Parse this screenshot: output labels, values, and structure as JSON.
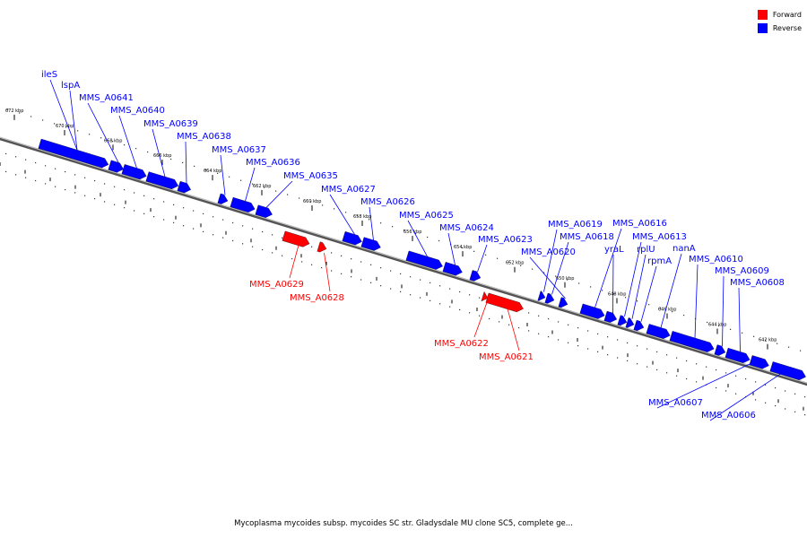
{
  "caption": "Mycoplasma mycoides subsp. mycoides SC str. Gladysdale MU clone SC5, complete ge...",
  "legend": [
    {
      "label": "Forward",
      "color": "#ff0000"
    },
    {
      "label": "Reverse",
      "color": "#0000ff"
    }
  ],
  "colors": {
    "forward": "#ff0000",
    "reverse": "#0000ff",
    "backbone": "#555555"
  },
  "ticks": [
    "672 kbp",
    "670 kbp",
    "668 kbp",
    "666 kbp",
    "664 kbp",
    "662 kbp",
    "660 kbp",
    "658 kbp",
    "656 kbp",
    "654 kbp",
    "652 kbp",
    "650 kbp",
    "648 kbp",
    "646 kbp",
    "644 kbp",
    "642 kbp"
  ],
  "genes": [
    {
      "name": "ileS",
      "strand": "reverse"
    },
    {
      "name": "lspA",
      "strand": "reverse"
    },
    {
      "name": "MMS_A0641",
      "strand": "reverse"
    },
    {
      "name": "MMS_A0640",
      "strand": "reverse"
    },
    {
      "name": "MMS_A0639",
      "strand": "reverse"
    },
    {
      "name": "MMS_A0638",
      "strand": "reverse"
    },
    {
      "name": "MMS_A0637",
      "strand": "reverse"
    },
    {
      "name": "MMS_A0636",
      "strand": "reverse"
    },
    {
      "name": "MMS_A0635",
      "strand": "reverse"
    },
    {
      "name": "MMS_A0627",
      "strand": "reverse"
    },
    {
      "name": "MMS_A0626",
      "strand": "reverse"
    },
    {
      "name": "MMS_A0625",
      "strand": "reverse"
    },
    {
      "name": "MMS_A0624",
      "strand": "reverse"
    },
    {
      "name": "MMS_A0623",
      "strand": "reverse"
    },
    {
      "name": "MMS_A0619",
      "strand": "reverse"
    },
    {
      "name": "MMS_A0618",
      "strand": "reverse"
    },
    {
      "name": "MMS_A0620",
      "strand": "reverse"
    },
    {
      "name": "MMS_A0616",
      "strand": "reverse"
    },
    {
      "name": "yraL",
      "strand": "reverse"
    },
    {
      "name": "MMS_A0613",
      "strand": "reverse"
    },
    {
      "name": "rplU",
      "strand": "reverse"
    },
    {
      "name": "nanA",
      "strand": "reverse"
    },
    {
      "name": "rpmA",
      "strand": "reverse"
    },
    {
      "name": "MMS_A0610",
      "strand": "reverse"
    },
    {
      "name": "MMS_A0609",
      "strand": "reverse"
    },
    {
      "name": "MMS_A0608",
      "strand": "reverse"
    },
    {
      "name": "MMS_A0607",
      "strand": "reverse"
    },
    {
      "name": "MMS_A0606",
      "strand": "reverse"
    },
    {
      "name": "MMS_A0629",
      "strand": "forward"
    },
    {
      "name": "MMS_A0628",
      "strand": "forward"
    },
    {
      "name": "MMS_A0622",
      "strand": "forward"
    },
    {
      "name": "MMS_A0621",
      "strand": "forward"
    }
  ]
}
